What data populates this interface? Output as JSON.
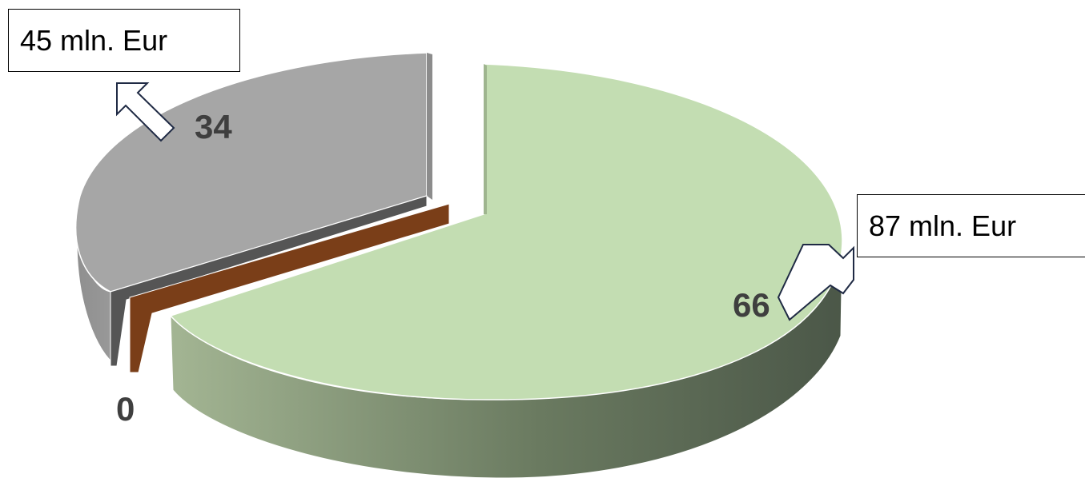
{
  "chart_data": {
    "type": "pie",
    "title": "",
    "slices": [
      {
        "label": "66",
        "value": 66,
        "color": "#c3ddb2",
        "side_dark": "#4b5748",
        "side_light": "#a3b593"
      },
      {
        "label": "0",
        "value": 0.7,
        "color": "#7a3e18"
      },
      {
        "label": "0",
        "value": 0.5,
        "color": "#555555"
      },
      {
        "label": "34",
        "value": 34,
        "color": "#a6a6a6",
        "side_color": "#8c8c8c"
      }
    ],
    "data_labels": {
      "left": "34",
      "right": "66",
      "small": "0"
    },
    "callouts": {
      "left": "45 mln. Eur",
      "right": "87 mln. Eur"
    },
    "style": "3d-exploded",
    "legend": "none"
  }
}
